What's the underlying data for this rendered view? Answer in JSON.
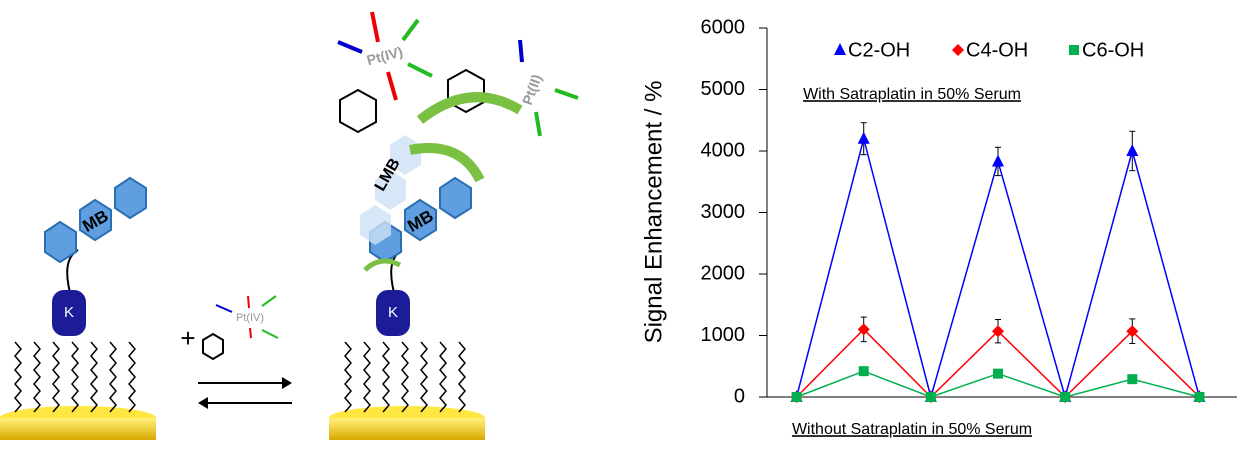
{
  "schematic": {
    "mb": "MB",
    "k": "K",
    "pt4": "Pt(IV)",
    "pt2": "Pt(II)",
    "lmb": "LMB",
    "plus": "+"
  },
  "chart_data": {
    "type": "line",
    "ylabel": "Signal Enhancement / %",
    "annotations": [
      "With Satraplatin in 50% Serum",
      "Without Satraplatin in 50% Serum"
    ],
    "categories": [
      null,
      null,
      null,
      null,
      null,
      null,
      null
    ],
    "ylim": [
      0,
      6000
    ],
    "yticks": [
      0,
      1000,
      2000,
      3000,
      4000,
      5000,
      6000
    ],
    "legend": "top",
    "series": [
      {
        "name": "C2-OH",
        "color": "#0000ff",
        "marker": "triangle",
        "values": [
          0,
          4200,
          0,
          3830,
          0,
          4000,
          0
        ],
        "errors": [
          null,
          260,
          null,
          230,
          null,
          320,
          null
        ]
      },
      {
        "name": "C4-OH",
        "color": "#ff0000",
        "marker": "diamond",
        "values": [
          0,
          1100,
          0,
          1070,
          0,
          1070,
          0
        ],
        "errors": [
          null,
          200,
          null,
          190,
          null,
          200,
          null
        ]
      },
      {
        "name": "C6-OH",
        "color": "#00b050",
        "marker": "square",
        "values": [
          0,
          420,
          0,
          380,
          0,
          290,
          0
        ],
        "errors": [
          null,
          null,
          null,
          null,
          null,
          null,
          null
        ]
      }
    ]
  }
}
